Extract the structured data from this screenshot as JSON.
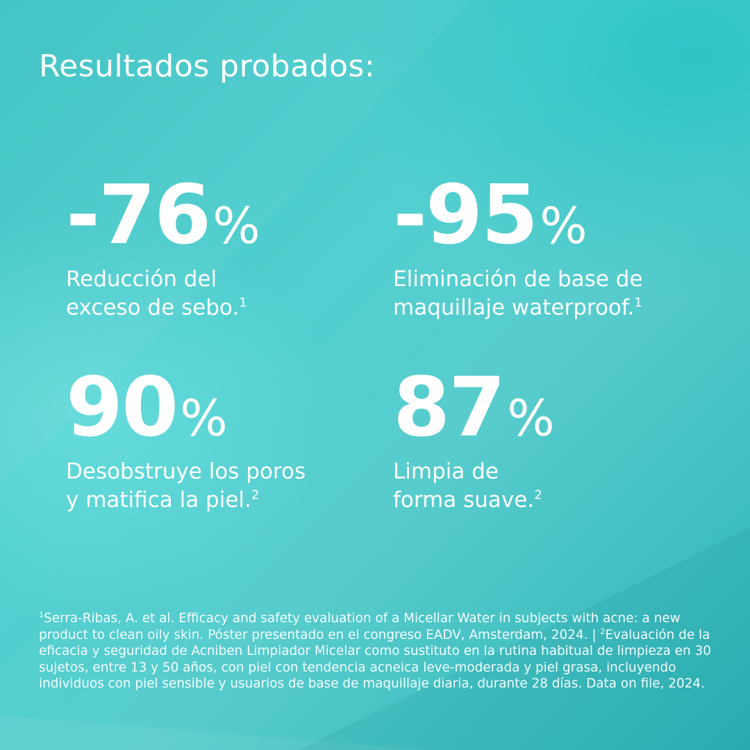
{
  "title": "Resultados probados:",
  "stats": [
    {
      "value": "-76",
      "unit": "%",
      "line1": "Reducción del",
      "line2": "exceso de sebo.",
      "ref": "1"
    },
    {
      "value": "-95",
      "unit": "%",
      "line1": "Eliminación de base de",
      "line2": "maquillaje waterproof.",
      "ref": "1"
    },
    {
      "value": "90",
      "unit": "%",
      "line1": "Desobstruye los poros",
      "line2": "y matifica la piel.",
      "ref": "2"
    },
    {
      "value": "87",
      "unit": "%",
      "line1": "Limpia de",
      "line2": "forma suave.",
      "ref": "2"
    }
  ],
  "footnote": {
    "ref1": "1",
    "text1": "Serra-Ribas, A. et al. Efficacy and safety evaluation of a Micellar Water in subjects with acne: a new product to clean oily skin. Póster presentado en el congreso EADV, Amsterdam, 2024. | ",
    "ref2": "2",
    "text2": "Evaluación de la eficacia y seguridad de Acniben Limpiador Micelar como sustituto en la rutina habitual de limpieza en 30 sujetos, entre 13 y 50 años, con piel con tendencia acneica leve-moderada y piel grasa, incluyendo individuos con piel sensible y usuarios de base de maquillaje diaria, durante 28 días. Data on file, 2024."
  },
  "colors": {
    "text": "#ffffff",
    "background_light": "#58cccd",
    "background_dark": "#2db3b6"
  }
}
